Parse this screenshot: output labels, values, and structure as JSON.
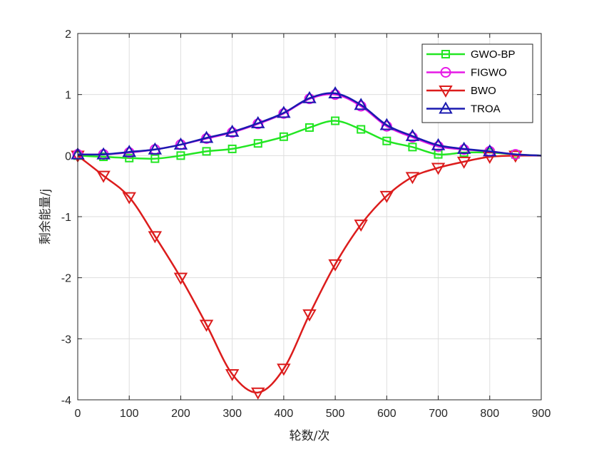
{
  "chart_data": {
    "type": "line",
    "title": "",
    "xlabel": "轮数/次",
    "ylabel": "剩余能量/j",
    "xlim": [
      0,
      900
    ],
    "ylim": [
      -4,
      2
    ],
    "xticks": [
      0,
      100,
      200,
      300,
      400,
      500,
      600,
      700,
      800,
      900
    ],
    "yticks": [
      -4,
      -3,
      -2,
      -1,
      0,
      1,
      2
    ],
    "xtick_labels": [
      "0",
      "100",
      "200",
      "300",
      "400",
      "500",
      "600",
      "700",
      "800",
      "900"
    ],
    "ytick_labels": [
      "-4",
      "-3",
      "-2",
      "-1",
      "0",
      "1",
      "2"
    ],
    "grid": true,
    "legend_position": "top-right",
    "series": [
      {
        "name": "GWO-BP",
        "color": "#22e622",
        "marker": "square",
        "x": [
          0,
          50,
          100,
          150,
          200,
          250,
          300,
          350,
          400,
          450,
          500,
          550,
          600,
          650,
          700,
          750,
          800,
          850,
          900
        ],
        "values": [
          0.0,
          -0.02,
          -0.04,
          -0.05,
          0.0,
          0.07,
          0.11,
          0.2,
          0.31,
          0.46,
          0.57,
          0.43,
          0.24,
          0.14,
          0.02,
          0.05,
          0.05,
          0.02,
          0.0
        ],
        "marker_x": [
          0,
          50,
          100,
          150,
          200,
          250,
          300,
          350,
          400,
          450,
          500,
          550,
          600,
          650,
          700,
          750,
          800,
          850
        ]
      },
      {
        "name": "FIGWO",
        "color": "#e619e6",
        "marker": "circle",
        "x": [
          0,
          50,
          100,
          150,
          200,
          250,
          300,
          350,
          400,
          450,
          500,
          550,
          600,
          650,
          700,
          750,
          800,
          850,
          900
        ],
        "values": [
          0.02,
          0.02,
          0.05,
          0.1,
          0.18,
          0.28,
          0.38,
          0.52,
          0.69,
          0.93,
          1.0,
          0.81,
          0.48,
          0.3,
          0.15,
          0.1,
          0.07,
          0.02,
          0.0
        ],
        "marker_x": [
          0,
          50,
          100,
          150,
          200,
          250,
          300,
          350,
          400,
          450,
          500,
          550,
          600,
          650,
          700,
          750,
          800,
          850
        ]
      },
      {
        "name": "BWO",
        "color": "#dc1c1c",
        "marker": "triangle-down",
        "x": [
          0,
          50,
          100,
          150,
          200,
          250,
          300,
          350,
          400,
          450,
          500,
          550,
          600,
          650,
          700,
          750,
          800,
          850,
          900
        ],
        "values": [
          0.0,
          -0.33,
          -0.68,
          -1.32,
          -2.0,
          -2.77,
          -3.58,
          -3.88,
          -3.49,
          -2.6,
          -1.78,
          -1.13,
          -0.66,
          -0.35,
          -0.2,
          -0.1,
          -0.02,
          0.0,
          0.0
        ],
        "marker_x": [
          0,
          50,
          100,
          150,
          200,
          250,
          300,
          350,
          400,
          450,
          500,
          550,
          600,
          650,
          700,
          750,
          800,
          850
        ]
      },
      {
        "name": "TROA",
        "color": "#1a1ab0",
        "marker": "triangle-up",
        "x": [
          0,
          50,
          100,
          150,
          200,
          250,
          300,
          350,
          400,
          450,
          500,
          550,
          600,
          650,
          700,
          750,
          800,
          850,
          900
        ],
        "values": [
          0.02,
          0.02,
          0.06,
          0.1,
          0.18,
          0.29,
          0.39,
          0.53,
          0.7,
          0.94,
          1.02,
          0.83,
          0.5,
          0.32,
          0.17,
          0.11,
          0.07,
          0.02,
          0.0
        ],
        "marker_x": [
          0,
          50,
          100,
          150,
          200,
          250,
          300,
          350,
          400,
          450,
          500,
          550,
          600,
          650,
          700,
          750,
          800
        ]
      }
    ]
  }
}
